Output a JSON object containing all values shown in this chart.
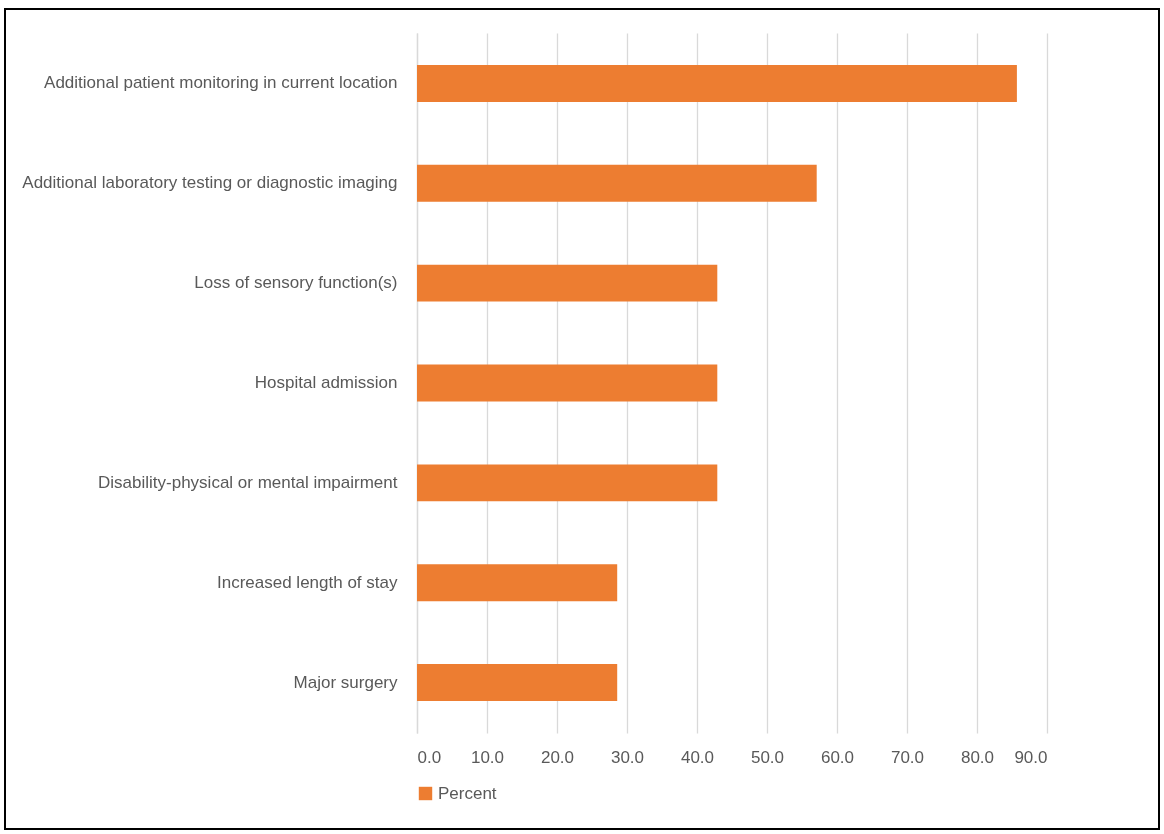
{
  "chart_data": {
    "type": "bar",
    "orientation": "horizontal",
    "categories": [
      "Additional patient monitoring in current location",
      "Additional laboratory testing or diagnostic imaging",
      "Loss of sensory function(s)",
      "Hospital admission",
      "Disability-physical or mental impairment",
      "Increased length of stay",
      "Major surgery"
    ],
    "series": [
      {
        "name": "Percent",
        "color": "#ed7d31",
        "values": [
          85.7,
          57.1,
          42.9,
          42.9,
          42.9,
          28.6,
          28.6
        ]
      }
    ],
    "xlim": [
      0,
      90
    ],
    "xticks": [
      {
        "value": 0,
        "label": "0.0"
      },
      {
        "value": 10,
        "label": "10.0"
      },
      {
        "value": 20,
        "label": "20.0"
      },
      {
        "value": 30,
        "label": "30.0"
      },
      {
        "value": 40,
        "label": "40.0"
      },
      {
        "value": 50,
        "label": "50.0"
      },
      {
        "value": 60,
        "label": "60.0"
      },
      {
        "value": 70,
        "label": "70.0"
      },
      {
        "value": 80,
        "label": "80.0"
      },
      {
        "value": 90,
        "label": "90.0"
      }
    ],
    "grid": "x",
    "legend": "bottom"
  }
}
